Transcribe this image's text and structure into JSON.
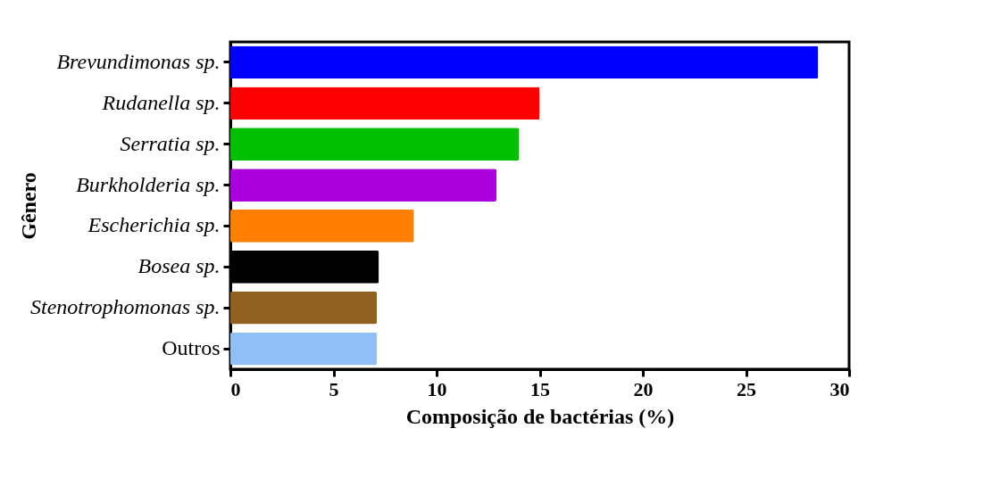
{
  "chart_data": {
    "type": "bar",
    "orientation": "horizontal",
    "xlabel": "Composição de bactérias (%)",
    "ylabel": "Gênero",
    "categories": [
      "Brevundimonas sp.",
      "Rudanella sp.",
      "Serratia sp.",
      "Burkholderia sp.",
      "Escherichia sp.",
      "Bosea sp.",
      "Stenotrophomonas sp.",
      "Outros"
    ],
    "values": [
      28.5,
      15.0,
      14.0,
      12.9,
      8.9,
      7.2,
      7.1,
      7.1
    ],
    "colors": [
      "#0000ff",
      "#ff0000",
      "#00c000",
      "#aa00dd",
      "#ff8000",
      "#000000",
      "#926120",
      "#90bff8"
    ],
    "xlim": [
      0,
      30
    ],
    "xticks": [
      0,
      5,
      10,
      15,
      20,
      25,
      30
    ]
  }
}
